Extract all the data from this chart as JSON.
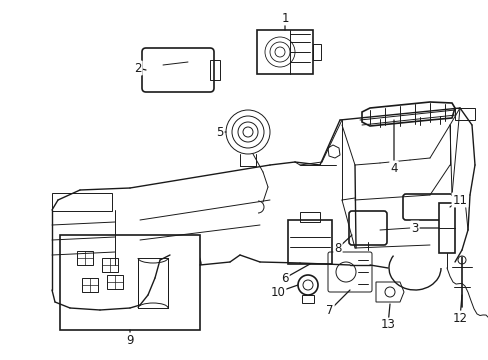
{
  "background_color": "#ffffff",
  "fig_width": 4.89,
  "fig_height": 3.6,
  "dpi": 100,
  "line_color": "#1a1a1a",
  "label_fontsize": 8.5,
  "lw_main": 1.2,
  "lw_thin": 0.7,
  "lw_body": 1.0
}
